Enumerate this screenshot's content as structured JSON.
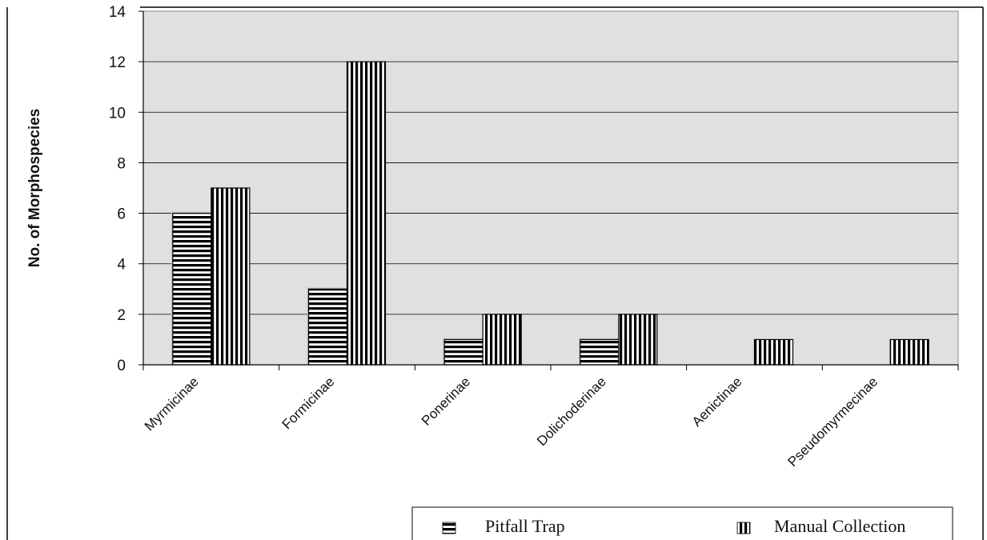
{
  "chart_data": {
    "type": "bar",
    "title": "",
    "xlabel": "",
    "ylabel": "No. of Morphospecies",
    "ylim": [
      0,
      14
    ],
    "yticks": [
      "0",
      "2",
      "4",
      "6",
      "8",
      "10",
      "12",
      "14"
    ],
    "grid": true,
    "legend_position": "bottom",
    "categories": [
      "Myrmicinae",
      "Formicinae",
      "Ponerinae",
      "Dolichoderinae",
      "Aenictinae",
      "Pseudomyrmecinae"
    ],
    "series": [
      {
        "name": "Pitfall Trap",
        "values": [
          6,
          3,
          1,
          1,
          0,
          0
        ],
        "pattern": "horizontal-stripes"
      },
      {
        "name": "Manual Collection",
        "values": [
          7,
          12,
          2,
          2,
          1,
          1
        ],
        "pattern": "vertical-stripes"
      }
    ],
    "colors": {
      "plot_background": "#e0e0e0",
      "bar_stripe": "#000000",
      "bar_fill": "#ffffff"
    }
  }
}
